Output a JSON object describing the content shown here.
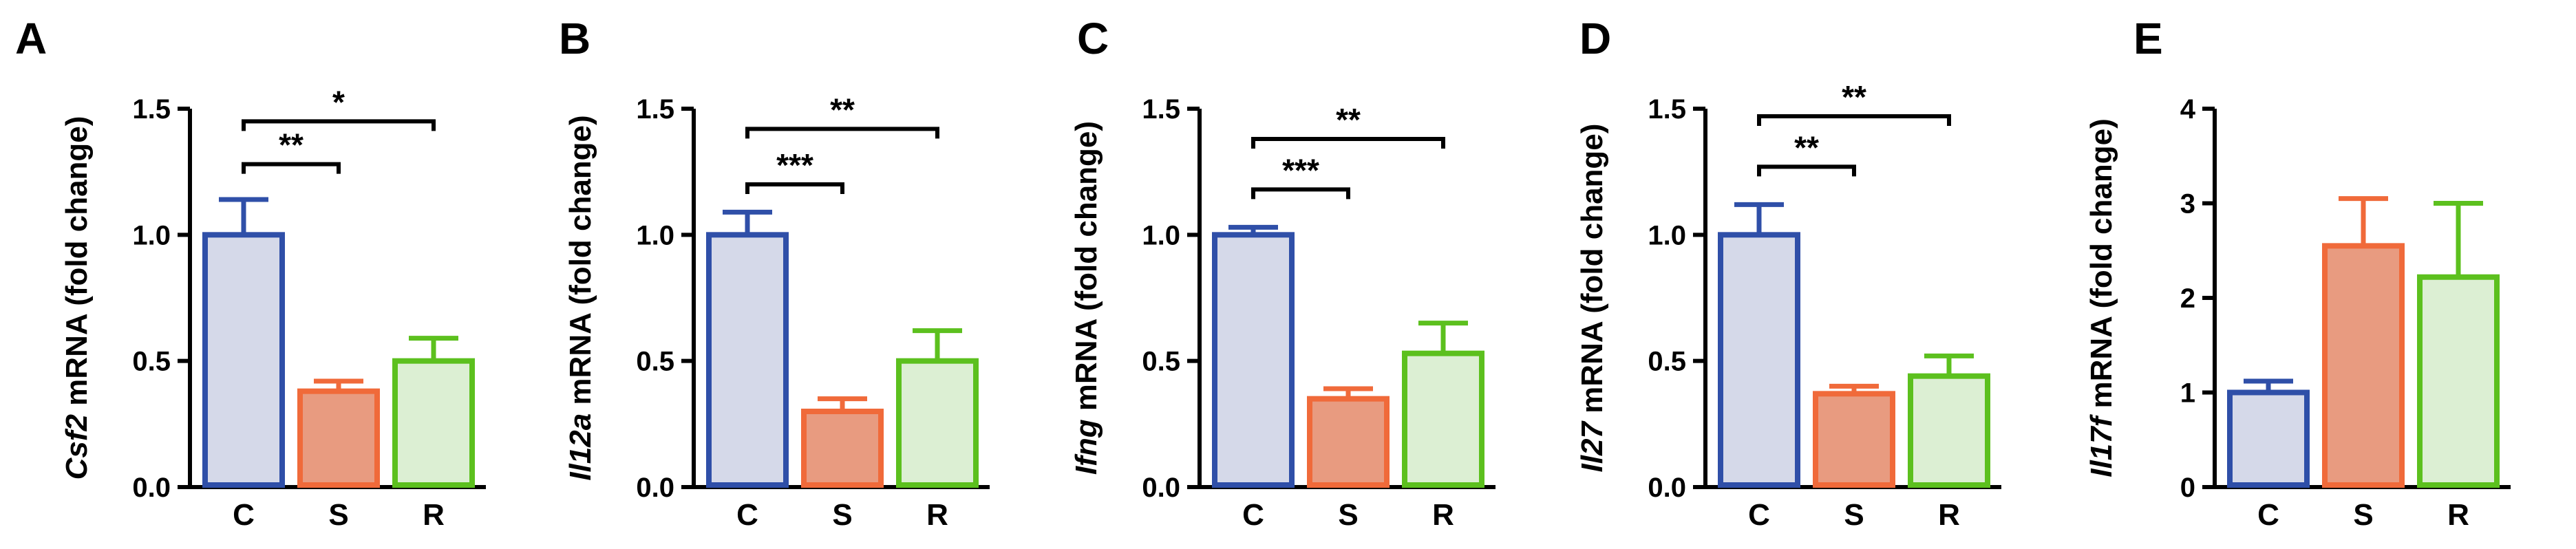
{
  "chart_data": [
    {
      "type": "bar",
      "panel": "A",
      "ylabel_gene": "Csf2",
      "ylabel_rest": " mRNA (fold change)",
      "categories": [
        "C",
        "S",
        "R"
      ],
      "values": [
        1.0,
        0.38,
        0.5
      ],
      "errors": [
        0.14,
        0.04,
        0.09
      ],
      "ylim": [
        0,
        1.5
      ],
      "yticks": [
        "0.0",
        "0.5",
        "1.0",
        "1.5"
      ],
      "significance": [
        {
          "from": 0,
          "to": 1,
          "label": "**",
          "level": 1.28
        },
        {
          "from": 0,
          "to": 2,
          "label": "*",
          "level": 1.45
        }
      ]
    },
    {
      "type": "bar",
      "panel": "B",
      "ylabel_gene": "Il12a",
      "ylabel_rest": " mRNA (fold change)",
      "categories": [
        "C",
        "S",
        "R"
      ],
      "values": [
        1.0,
        0.3,
        0.5
      ],
      "errors": [
        0.09,
        0.05,
        0.12
      ],
      "ylim": [
        0,
        1.5
      ],
      "yticks": [
        "0.0",
        "0.5",
        "1.0",
        "1.5"
      ],
      "significance": [
        {
          "from": 0,
          "to": 1,
          "label": "***",
          "level": 1.2
        },
        {
          "from": 0,
          "to": 2,
          "label": "**",
          "level": 1.42
        }
      ]
    },
    {
      "type": "bar",
      "panel": "C",
      "ylabel_gene": "Ifng",
      "ylabel_rest": " mRNA (fold change)",
      "categories": [
        "C",
        "S",
        "R"
      ],
      "values": [
        1.0,
        0.35,
        0.53
      ],
      "errors": [
        0.03,
        0.04,
        0.12
      ],
      "ylim": [
        0,
        1.5
      ],
      "yticks": [
        "0.0",
        "0.5",
        "1.0",
        "1.5"
      ],
      "significance": [
        {
          "from": 0,
          "to": 1,
          "label": "***",
          "level": 1.18
        },
        {
          "from": 0,
          "to": 2,
          "label": "**",
          "level": 1.38
        }
      ]
    },
    {
      "type": "bar",
      "panel": "D",
      "ylabel_gene": "Il27",
      "ylabel_rest": " mRNA (fold change)",
      "categories": [
        "C",
        "S",
        "R"
      ],
      "values": [
        1.0,
        0.37,
        0.44
      ],
      "errors": [
        0.12,
        0.03,
        0.08
      ],
      "ylim": [
        0,
        1.5
      ],
      "yticks": [
        "0.0",
        "0.5",
        "1.0",
        "1.5"
      ],
      "significance": [
        {
          "from": 0,
          "to": 1,
          "label": "**",
          "level": 1.27
        },
        {
          "from": 0,
          "to": 2,
          "label": "**",
          "level": 1.47
        }
      ]
    },
    {
      "type": "bar",
      "panel": "E",
      "ylabel_gene": "Il17f",
      "ylabel_rest": " mRNA (fold change)",
      "categories": [
        "C",
        "S",
        "R"
      ],
      "values": [
        1.0,
        2.55,
        2.22
      ],
      "errors": [
        0.12,
        0.5,
        0.78
      ],
      "ylim": [
        0,
        4
      ],
      "yticks": [
        "0",
        "1",
        "2",
        "3",
        "4"
      ],
      "significance": []
    }
  ],
  "colors": {
    "C": {
      "stroke": "#2f4fa8",
      "fill": "#d5d9e9"
    },
    "S": {
      "stroke": "#f06a3a",
      "fill": "#e89b80"
    },
    "R": {
      "stroke": "#5cc01e",
      "fill": "#dcefd3"
    },
    "axis": "#000000"
  }
}
